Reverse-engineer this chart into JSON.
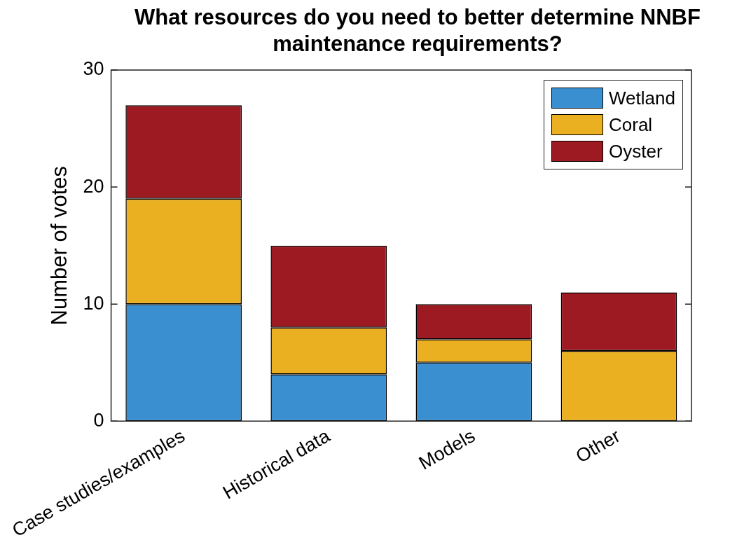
{
  "chart_data": {
    "type": "bar",
    "title": "What resources do you need to better determine NNBF maintenance requirements?",
    "ylabel": "Number of votes",
    "categories": [
      "Case studies/examples",
      "Historical data",
      "Models",
      "Other"
    ],
    "series": [
      {
        "name": "Wetland",
        "color": "#3a8fd0",
        "values": [
          10,
          4,
          5,
          0
        ]
      },
      {
        "name": "Coral",
        "color": "#ebb022",
        "values": [
          9,
          4,
          2,
          6
        ]
      },
      {
        "name": "Oyster",
        "color": "#9e1a22",
        "values": [
          8,
          7,
          3,
          5
        ]
      }
    ],
    "stacked": true,
    "ylim": [
      0,
      30
    ],
    "yticks": [
      0,
      10,
      20,
      30
    ],
    "grid": false,
    "legend": "top right"
  }
}
